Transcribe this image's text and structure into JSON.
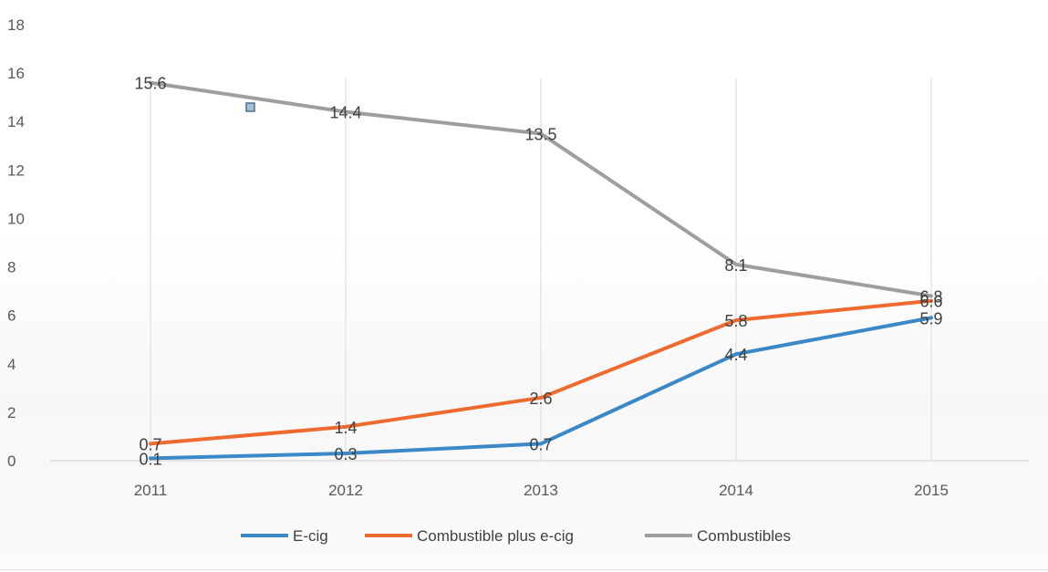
{
  "chart_data": {
    "type": "line",
    "title": "",
    "xlabel": "",
    "ylabel": "",
    "categories": [
      "2011",
      "2012",
      "2013",
      "2014",
      "2015"
    ],
    "ylim": [
      0,
      18
    ],
    "yticks": [
      0,
      2,
      4,
      6,
      8,
      10,
      12,
      14,
      16,
      18
    ],
    "grid": "vertical",
    "legend": "bottom",
    "series": [
      {
        "name": "E-cig",
        "color": "#3a88c8",
        "values": [
          0.1,
          0.3,
          0.7,
          4.4,
          5.9
        ]
      },
      {
        "name": "Combustible plus e-cig",
        "color": "#ef6a2f",
        "values": [
          0.7,
          1.4,
          2.6,
          5.8,
          6.6
        ]
      },
      {
        "name": "Combustibles",
        "color": "#9e9e9e",
        "values": [
          15.6,
          14.4,
          13.5,
          8.1,
          6.8
        ]
      }
    ]
  }
}
